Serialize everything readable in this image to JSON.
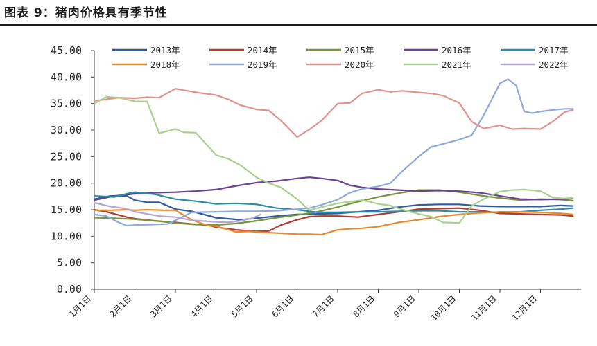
{
  "figure": {
    "title": "图表 9：猪肉价格具有季节性"
  },
  "chart_data": {
    "type": "line",
    "title": "",
    "xlabel": "",
    "ylabel": "",
    "ylim": [
      0,
      45
    ],
    "y_ticks": [
      "0.00",
      "5.00",
      "10.00",
      "15.00",
      "20.00",
      "25.00",
      "30.00",
      "35.00",
      "40.00",
      "45.00"
    ],
    "x_domain": [
      0,
      12
    ],
    "x_ticks": [
      {
        "x": 0,
        "label": "1月1日"
      },
      {
        "x": 1,
        "label": "2月1日"
      },
      {
        "x": 2,
        "label": "3月1日"
      },
      {
        "x": 3,
        "label": "4月1日"
      },
      {
        "x": 4,
        "label": "5月1日"
      },
      {
        "x": 5,
        "label": "6月1日"
      },
      {
        "x": 6,
        "label": "7月1日"
      },
      {
        "x": 7,
        "label": "8月1日"
      },
      {
        "x": 8,
        "label": "9月1日"
      },
      {
        "x": 9,
        "label": "10月1日"
      },
      {
        "x": 10,
        "label": "11月1日"
      },
      {
        "x": 11,
        "label": "12月1日"
      }
    ],
    "grid": false,
    "legend": "top",
    "series": [
      {
        "name": "2013年",
        "color": "#2e5c9e",
        "x": [
          0,
          0.4,
          0.8,
          1.0,
          1.3,
          1.6,
          2.0,
          2.4,
          3.0,
          3.6,
          4.0,
          4.5,
          5.0,
          5.5,
          6.0,
          6.5,
          7.0,
          7.5,
          8.0,
          8.5,
          9.0,
          9.5,
          10.0,
          10.5,
          11.0,
          11.5,
          11.8
        ],
        "y": [
          17.0,
          17.6,
          17.6,
          16.8,
          16.4,
          16.4,
          15.1,
          14.7,
          13.5,
          13.1,
          13.4,
          13.8,
          14.1,
          14.2,
          14.3,
          14.6,
          14.9,
          15.5,
          15.9,
          16.0,
          16.0,
          15.7,
          15.6,
          15.6,
          15.6,
          15.8,
          15.7
        ]
      },
      {
        "name": "2014年",
        "color": "#b23a2e",
        "x": [
          0,
          0.3,
          0.8,
          1.0,
          1.5,
          2.0,
          2.4,
          2.8,
          3.0,
          3.5,
          4.0,
          4.3,
          4.6,
          5.0,
          5.3,
          5.6,
          6.0,
          6.5,
          7.0,
          7.5,
          8.0,
          8.5,
          9.0,
          9.5,
          10.0,
          10.5,
          11.0,
          11.5,
          11.8
        ],
        "y": [
          15.0,
          14.6,
          13.6,
          13.3,
          12.9,
          12.6,
          12.3,
          12.1,
          11.7,
          11.2,
          10.9,
          11.0,
          12.1,
          13.1,
          13.7,
          13.8,
          13.8,
          13.6,
          14.1,
          14.6,
          15.1,
          15.2,
          15.3,
          14.9,
          14.3,
          14.2,
          14.1,
          14.0,
          13.8
        ]
      },
      {
        "name": "2015年",
        "color": "#77933c",
        "x": [
          0,
          0.5,
          1.0,
          1.5,
          2.0,
          2.5,
          3.0,
          3.5,
          4.0,
          4.5,
          5.0,
          5.5,
          6.0,
          6.5,
          7.0,
          7.5,
          8.0,
          8.5,
          9.0,
          9.5,
          10.0,
          10.5,
          11.0,
          11.5,
          11.8
        ],
        "y": [
          13.5,
          13.4,
          13.2,
          12.9,
          12.5,
          12.2,
          12.1,
          12.4,
          12.9,
          13.5,
          14.0,
          14.6,
          15.5,
          16.5,
          17.4,
          18.1,
          18.7,
          18.7,
          18.3,
          17.7,
          17.2,
          16.8,
          17.0,
          16.9,
          16.7
        ]
      },
      {
        "name": "2016年",
        "color": "#6b3f93",
        "x": [
          0,
          0.5,
          1.0,
          1.5,
          2.0,
          2.5,
          3.0,
          3.5,
          4.0,
          4.5,
          5.0,
          5.3,
          5.6,
          6.0,
          6.3,
          6.6,
          7.0,
          7.5,
          8.0,
          8.5,
          9.0,
          9.5,
          10.0,
          10.5,
          11.0,
          11.5,
          11.8
        ],
        "y": [
          16.8,
          17.6,
          18.0,
          18.2,
          18.3,
          18.5,
          18.8,
          19.5,
          20.1,
          20.4,
          20.9,
          21.1,
          20.9,
          20.5,
          19.6,
          19.2,
          18.9,
          18.7,
          18.5,
          18.6,
          18.5,
          18.2,
          17.6,
          17.0,
          16.9,
          17.0,
          17.1
        ]
      },
      {
        "name": "2017年",
        "color": "#2b8aa5",
        "x": [
          0,
          0.5,
          0.8,
          1.0,
          1.5,
          2.0,
          2.5,
          3.0,
          3.5,
          4.0,
          4.5,
          5.0,
          5.5,
          6.0,
          6.5,
          7.0,
          7.5,
          8.0,
          8.5,
          9.0,
          9.5,
          10.0,
          10.5,
          11.0,
          11.5,
          11.8
        ],
        "y": [
          17.6,
          17.4,
          18.0,
          18.3,
          17.9,
          17.0,
          16.6,
          16.1,
          16.2,
          16.0,
          15.3,
          15.0,
          14.5,
          14.5,
          14.6,
          14.6,
          14.7,
          14.8,
          14.8,
          14.6,
          14.6,
          14.5,
          14.6,
          14.9,
          15.1,
          15.3
        ]
      },
      {
        "name": "2018年",
        "color": "#e78a2e",
        "x": [
          0,
          0.4,
          0.8,
          1.0,
          1.3,
          1.7,
          2.0,
          2.4,
          2.8,
          3.0,
          3.5,
          3.8,
          4.0,
          4.5,
          5.0,
          5.3,
          5.6,
          6.0,
          6.3,
          6.6,
          7.0,
          7.5,
          8.0,
          8.5,
          9.0,
          9.5,
          10.0,
          10.5,
          11.0,
          11.5,
          11.8
        ],
        "y": [
          14.9,
          14.9,
          15.0,
          14.9,
          15.0,
          14.9,
          14.9,
          13.1,
          12.0,
          11.9,
          10.8,
          10.9,
          10.8,
          10.6,
          10.4,
          10.4,
          10.3,
          11.2,
          11.4,
          11.5,
          11.8,
          12.6,
          13.1,
          13.7,
          14.1,
          14.4,
          14.6,
          14.6,
          14.5,
          14.3,
          14.1
        ]
      },
      {
        "name": "2019年",
        "color": "#8ea9db",
        "x": [
          0,
          0.3,
          0.6,
          0.8,
          1.0,
          1.4,
          1.8,
          2.0,
          2.4,
          3.0,
          3.5,
          4.0,
          4.5,
          5.0,
          5.3,
          5.6,
          6.0,
          6.3,
          6.6,
          7.0,
          7.3,
          7.6,
          8.0,
          8.3,
          8.6,
          9.0,
          9.3,
          9.6,
          10.0,
          10.2,
          10.4,
          10.6,
          10.8,
          11.0,
          11.3,
          11.6,
          11.8
        ],
        "y": [
          14.1,
          13.8,
          12.6,
          12.0,
          12.1,
          12.2,
          12.3,
          13.0,
          14.5,
          14.6,
          14.7,
          14.7,
          14.8,
          15.1,
          15.3,
          15.9,
          16.9,
          18.2,
          18.9,
          19.4,
          20.0,
          22.3,
          25.0,
          26.8,
          27.4,
          28.2,
          29.0,
          32.8,
          38.8,
          39.6,
          38.4,
          33.5,
          33.2,
          33.5,
          33.8,
          34.0,
          34.0
        ]
      },
      {
        "name": "2020年",
        "color": "#e2918c",
        "x": [
          0,
          0.3,
          0.6,
          1.0,
          1.3,
          1.6,
          2.0,
          2.3,
          2.6,
          3.0,
          3.3,
          3.6,
          4.0,
          4.3,
          4.6,
          5.0,
          5.3,
          5.6,
          6.0,
          6.3,
          6.6,
          7.0,
          7.3,
          7.6,
          8.0,
          8.3,
          8.6,
          9.0,
          9.3,
          9.6,
          10.0,
          10.3,
          10.6,
          11.0,
          11.3,
          11.6,
          11.8
        ],
        "y": [
          35.5,
          35.8,
          36.1,
          36.0,
          36.2,
          36.1,
          37.8,
          37.4,
          37.0,
          36.6,
          35.8,
          34.7,
          33.9,
          33.7,
          31.8,
          28.7,
          30.1,
          31.8,
          35.0,
          35.1,
          36.9,
          37.6,
          37.2,
          37.4,
          37.1,
          36.9,
          36.5,
          35.1,
          31.6,
          30.3,
          30.9,
          30.2,
          30.3,
          30.2,
          31.6,
          33.4,
          33.8
        ]
      },
      {
        "name": "2021年",
        "color": "#a9d18e",
        "x": [
          0,
          0.3,
          0.6,
          1.0,
          1.3,
          1.6,
          2.0,
          2.2,
          2.5,
          2.8,
          3.0,
          3.3,
          3.6,
          4.0,
          4.3,
          4.6,
          5.0,
          5.3,
          5.6,
          6.0,
          6.3,
          6.6,
          7.0,
          7.3,
          7.6,
          8.0,
          8.3,
          8.6,
          9.0,
          9.3,
          9.6,
          10.0,
          10.3,
          10.6,
          11.0,
          11.3,
          11.6,
          11.8
        ],
        "y": [
          35.0,
          36.3,
          36.1,
          35.4,
          35.4,
          29.4,
          30.2,
          29.6,
          29.5,
          27.0,
          25.3,
          24.6,
          23.4,
          21.1,
          20.0,
          19.2,
          17.0,
          14.9,
          15.5,
          16.2,
          16.5,
          16.8,
          16.1,
          15.8,
          15.0,
          14.2,
          13.7,
          12.6,
          12.5,
          15.7,
          17.0,
          18.4,
          18.7,
          18.8,
          18.5,
          17.3,
          17.1,
          17.3
        ]
      },
      {
        "name": "2022年",
        "color": "#b4a7d6",
        "x": [
          0,
          0.4,
          0.8,
          1.0,
          1.3,
          1.6,
          2.0,
          2.4,
          2.8,
          3.0,
          3.3,
          3.6,
          3.9,
          4.1
        ],
        "y": [
          16.3,
          15.6,
          15.2,
          14.6,
          14.2,
          13.8,
          13.6,
          13.0,
          12.8,
          12.7,
          12.6,
          12.9,
          13.4,
          14.1
        ]
      }
    ]
  }
}
